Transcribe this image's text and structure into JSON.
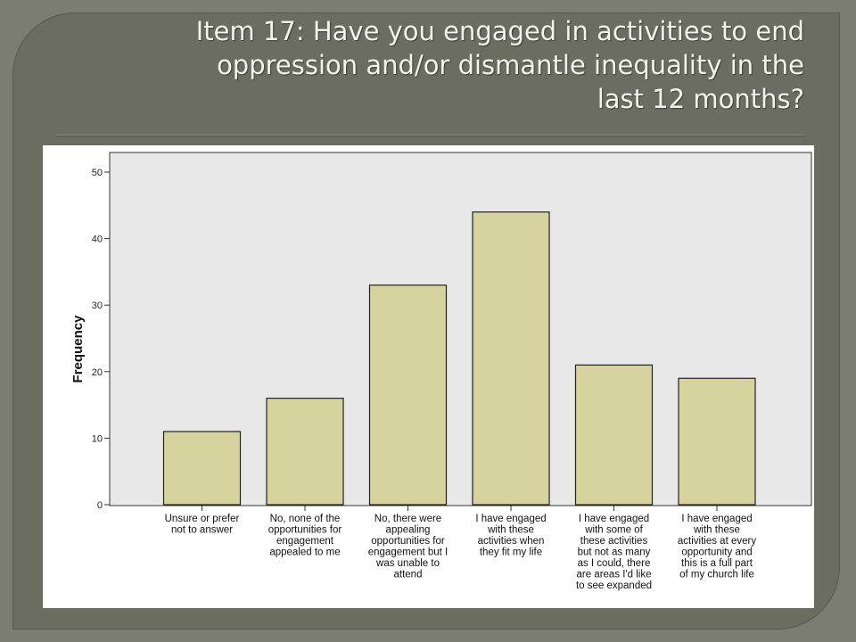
{
  "slide": {
    "title": "Item 17: Have you engaged in activities to end\noppression and/or dismantle inequality in the\nlast 12 months?"
  },
  "chart_data": {
    "type": "bar",
    "ylabel": "Frequency",
    "ylim": [
      0,
      50
    ],
    "yticks": [
      0,
      10,
      20,
      30,
      40,
      50
    ],
    "grid": false,
    "categories": [
      [
        "Unsure or prefer",
        "not to answer"
      ],
      [
        "No, none of the",
        "opportunities for",
        "engagement",
        "appealed to me"
      ],
      [
        "No, there were",
        "appealing",
        "opportunities for",
        "engagement but I",
        "was unable to",
        "attend"
      ],
      [
        "I have engaged",
        "with these",
        "activities when",
        "they fit my life"
      ],
      [
        "I have engaged",
        "with some of",
        "these activities",
        "but not as many",
        "as I could, there",
        "are areas I'd like",
        "to see expanded"
      ],
      [
        "I have engaged",
        "with these",
        "activities at every",
        "opportunity and",
        "this is a full part",
        "of my church life"
      ]
    ],
    "values": [
      11,
      16,
      33,
      44,
      21,
      19
    ],
    "colors": {
      "bar_fill": "#d6d39f",
      "bar_stroke": "#222222",
      "plot_bg": "#e8e8e8"
    }
  }
}
